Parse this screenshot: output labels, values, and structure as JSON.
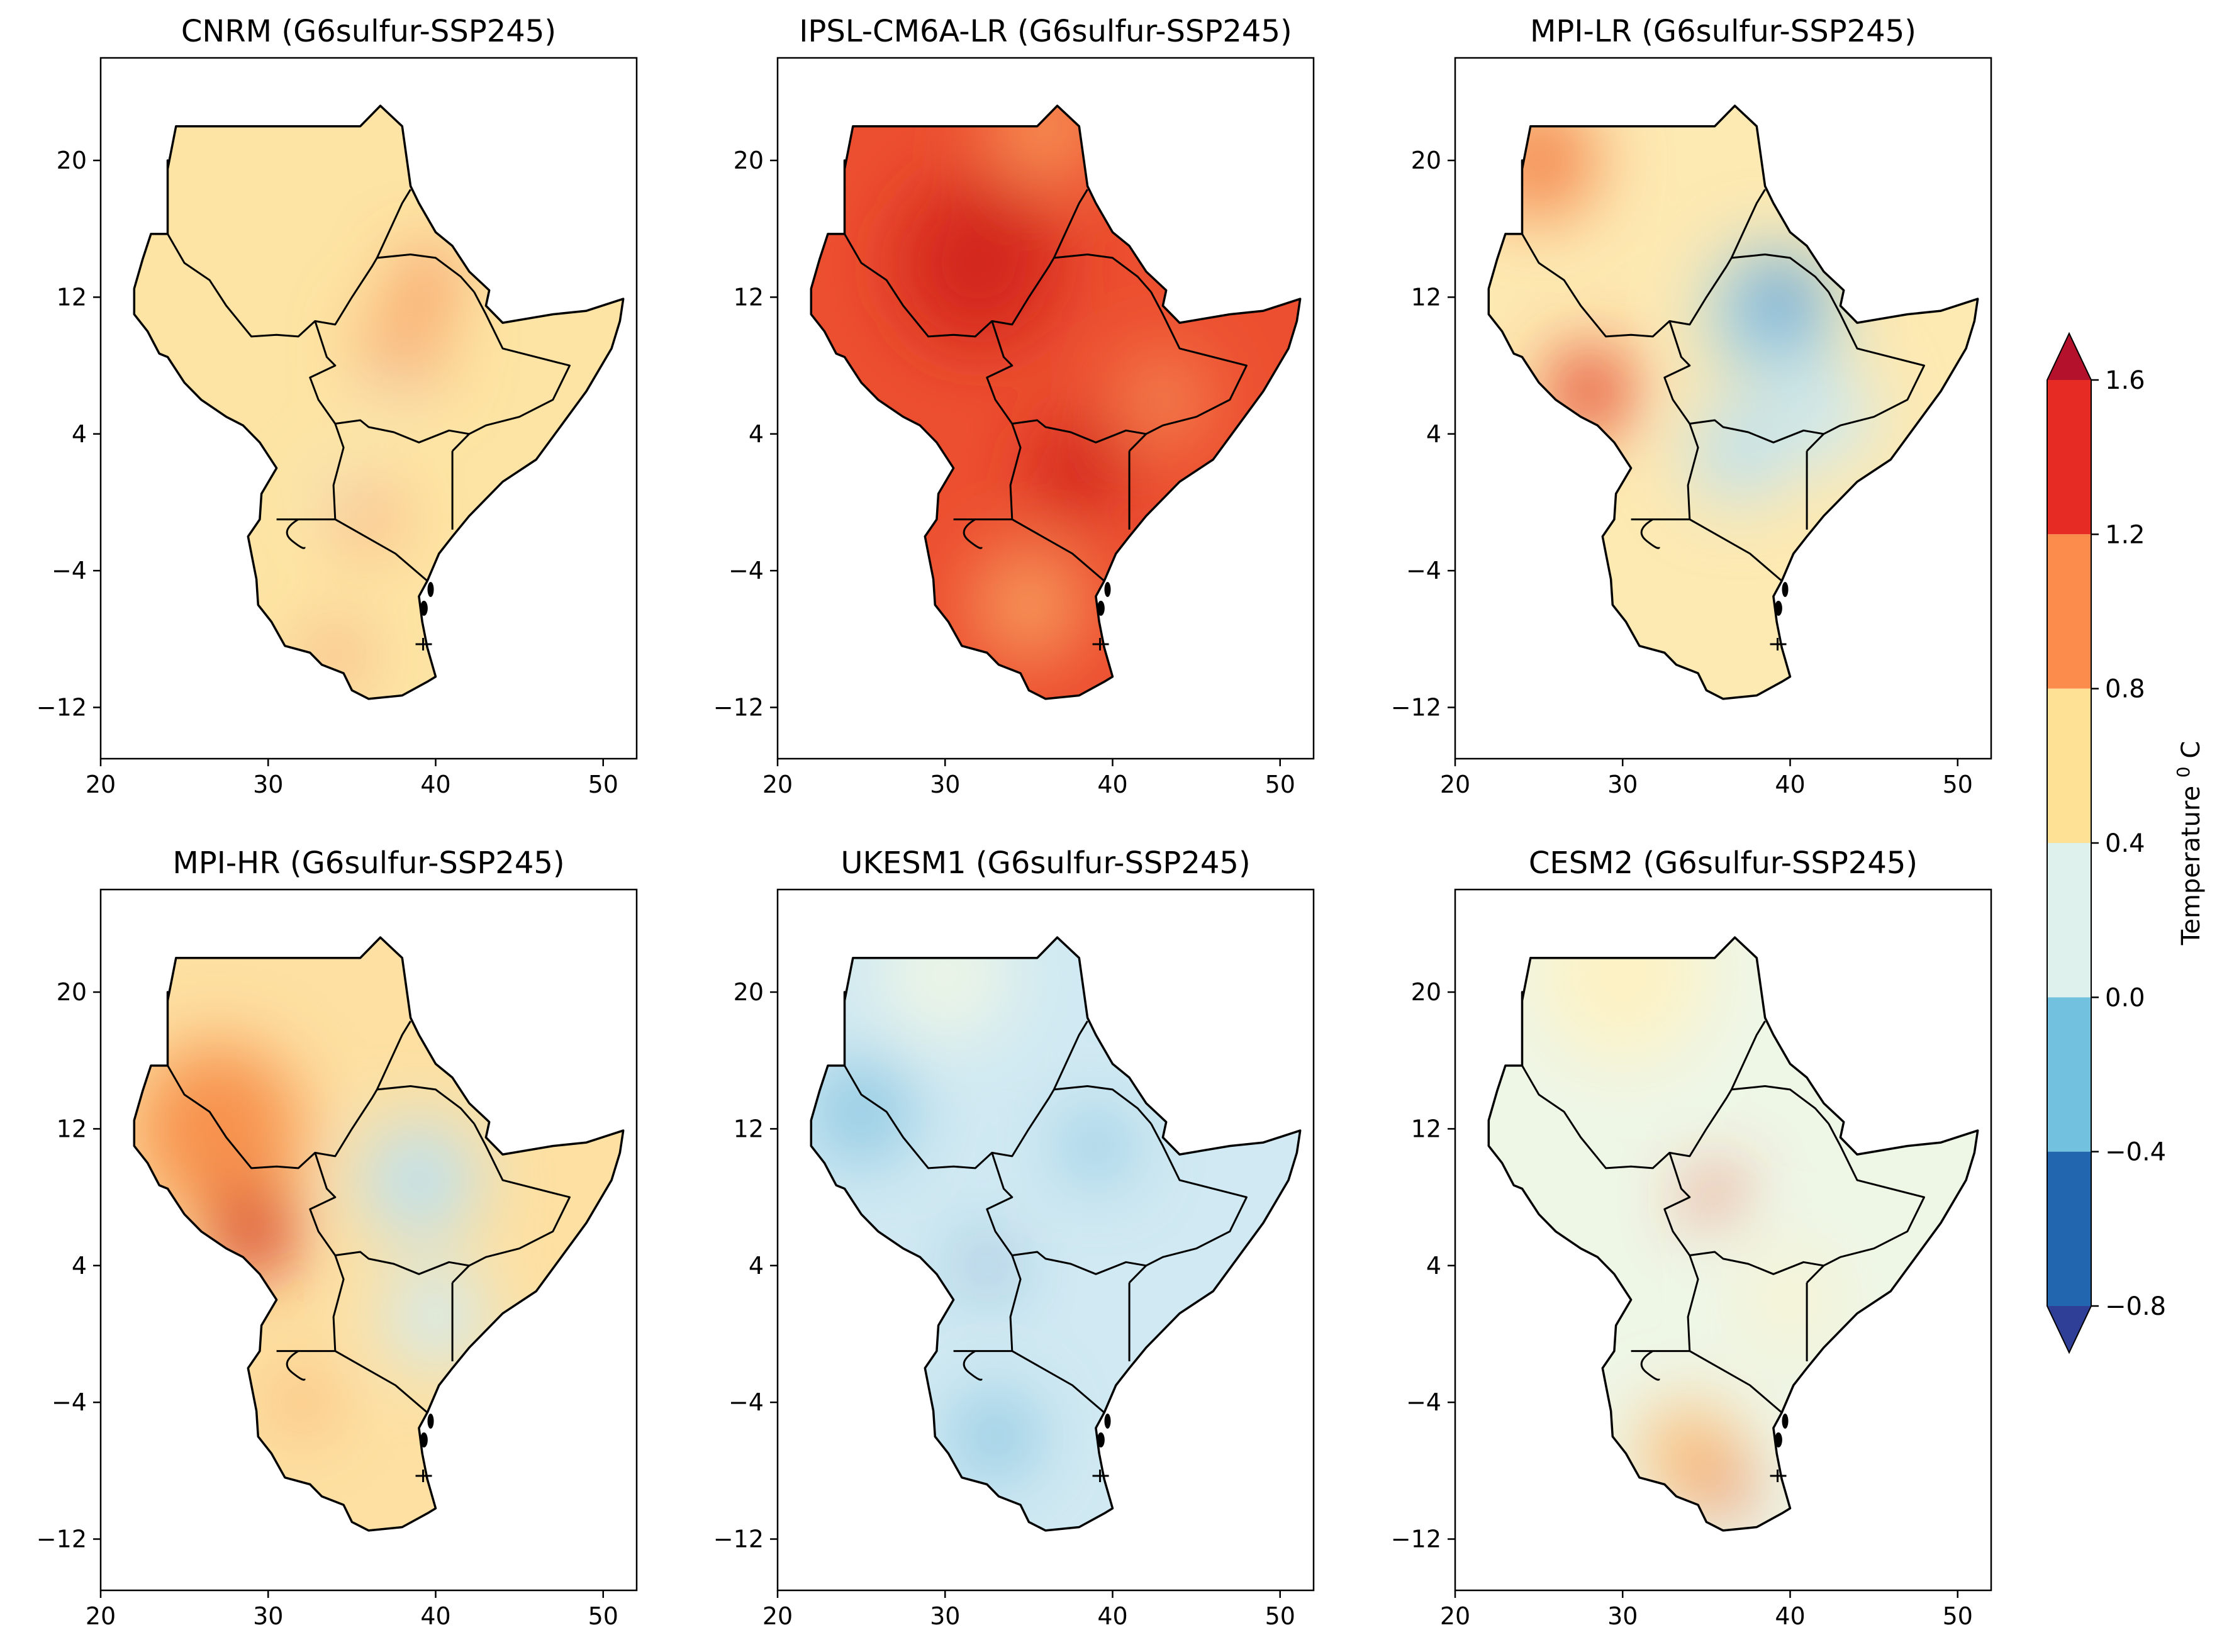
{
  "colorbar": {
    "label": "Temperature",
    "unit_sup": "0",
    "unit": "C",
    "ticks": [
      "1.6",
      "1.2",
      "0.8",
      "0.4",
      "0.0",
      "−0.4",
      "−0.8"
    ],
    "bins": [
      {
        "from": 1.2,
        "to": 1.6,
        "color": "#e62b24"
      },
      {
        "from": 0.8,
        "to": 1.2,
        "color": "#fb8c4b"
      },
      {
        "from": 0.4,
        "to": 0.8,
        "color": "#ffe196"
      },
      {
        "from": 0.0,
        "to": 0.4,
        "color": "#dff1ec"
      },
      {
        "from": -0.4,
        "to": 0.0,
        "color": "#72c2df"
      },
      {
        "from": -0.8,
        "to": -0.4,
        "color": "#2166ae"
      }
    ],
    "extend_max_color": "#b3112c",
    "extend_min_color": "#2f3f97"
  },
  "axes": {
    "xticks": [
      "20",
      "30",
      "40",
      "50"
    ],
    "yticks": [
      "20",
      "12",
      "4",
      "−4",
      "−12"
    ],
    "lon_range": [
      20,
      52
    ],
    "lat_range": [
      -15,
      26
    ]
  },
  "panels": [
    {
      "title": "CNRM (G6sulfur-SSP245)",
      "base": "#fde4a4",
      "blobs": [
        {
          "lon": 39.5,
          "lat": 13,
          "r": 1.5,
          "color": "#f0643a"
        },
        {
          "lon": 38,
          "lat": 9,
          "r": 2.5,
          "color": "#f9a867"
        },
        {
          "lon": 36,
          "lat": -1,
          "r": 1.5,
          "color": "#f7956a"
        },
        {
          "lon": 34,
          "lat": -9,
          "r": 1.3,
          "color": "#f07f5e"
        },
        {
          "lon": 37.5,
          "lat": 7,
          "r": 0.8,
          "color": "#cfe8ef"
        },
        {
          "lon": 34,
          "lat": 1,
          "r": 0.8,
          "color": "#cfe8ef"
        }
      ]
    },
    {
      "title": "IPSL-CM6A-LR (G6sulfur-SSP245)",
      "base": "#ec4f30",
      "blobs": [
        {
          "lon": 32,
          "lat": 14,
          "r": 5,
          "color": "#d3251e"
        },
        {
          "lon": 38,
          "lat": 2,
          "r": 3,
          "color": "#d3251e"
        },
        {
          "lon": 36,
          "lat": 22,
          "r": 3.5,
          "color": "#f78d52"
        },
        {
          "lon": 43,
          "lat": 6,
          "r": 3,
          "color": "#f47f4e"
        },
        {
          "lon": 35,
          "lat": -6,
          "r": 3.5,
          "color": "#f6955a"
        }
      ]
    },
    {
      "title": "MPI-LR (G6sulfur-SSP245)",
      "base": "#fde9b2",
      "blobs": [
        {
          "lon": 25,
          "lat": 20,
          "r": 3.5,
          "color": "#f48a51"
        },
        {
          "lon": 28,
          "lat": 6.5,
          "r": 2.5,
          "color": "#e3402a"
        },
        {
          "lon": 39,
          "lat": 11,
          "r": 4,
          "color": "#a7d5e8"
        },
        {
          "lon": 39.5,
          "lat": 12,
          "r": 1.8,
          "color": "#3f86c0"
        },
        {
          "lon": 37,
          "lat": 3,
          "r": 3,
          "color": "#bfe1ee"
        },
        {
          "lon": 42,
          "lat": 5,
          "r": 3,
          "color": "#cfe9ee"
        }
      ]
    },
    {
      "title": "MPI-HR (G6sulfur-SSP245)",
      "base": "#fde0a2",
      "blobs": [
        {
          "lon": 27,
          "lat": 12,
          "r": 5,
          "color": "#f7924e"
        },
        {
          "lon": 29,
          "lat": 6,
          "r": 2.5,
          "color": "#d3251e"
        },
        {
          "lon": 39,
          "lat": 9,
          "r": 3.5,
          "color": "#bfe1ee"
        },
        {
          "lon": 40,
          "lat": 1,
          "r": 3,
          "color": "#d2ebf0"
        },
        {
          "lon": 32,
          "lat": -4,
          "r": 1.5,
          "color": "#f7a262"
        }
      ]
    },
    {
      "title": "UKESM1 (G6sulfur-SSP245)",
      "base": "#d0e9f2",
      "blobs": [
        {
          "lon": 25,
          "lat": 13,
          "r": 3,
          "color": "#8dc8e2"
        },
        {
          "lon": 32.5,
          "lat": 4,
          "r": 1,
          "color": "#2d6fb2"
        },
        {
          "lon": 39,
          "lat": 11,
          "r": 2,
          "color": "#8dc8e2"
        },
        {
          "lon": 33,
          "lat": -6,
          "r": 2.5,
          "color": "#8dc8e2"
        },
        {
          "lon": 30,
          "lat": 21,
          "r": 4,
          "color": "#ecf5e6"
        }
      ]
    },
    {
      "title": "CESM2 (G6sulfur-SSP245)",
      "base": "#eef6e6",
      "blobs": [
        {
          "lon": 35.5,
          "lat": 8,
          "r": 1.3,
          "color": "#e84a31"
        },
        {
          "lon": 34,
          "lat": -7,
          "r": 3,
          "color": "#fbc17e"
        },
        {
          "lon": 36,
          "lat": -9,
          "r": 1.5,
          "color": "#e95a35"
        },
        {
          "lon": 30,
          "lat": 21,
          "r": 5,
          "color": "#fdf2c4"
        },
        {
          "lon": 40,
          "lat": 2,
          "r": 3,
          "color": "#f6f3d4"
        }
      ]
    }
  ]
}
